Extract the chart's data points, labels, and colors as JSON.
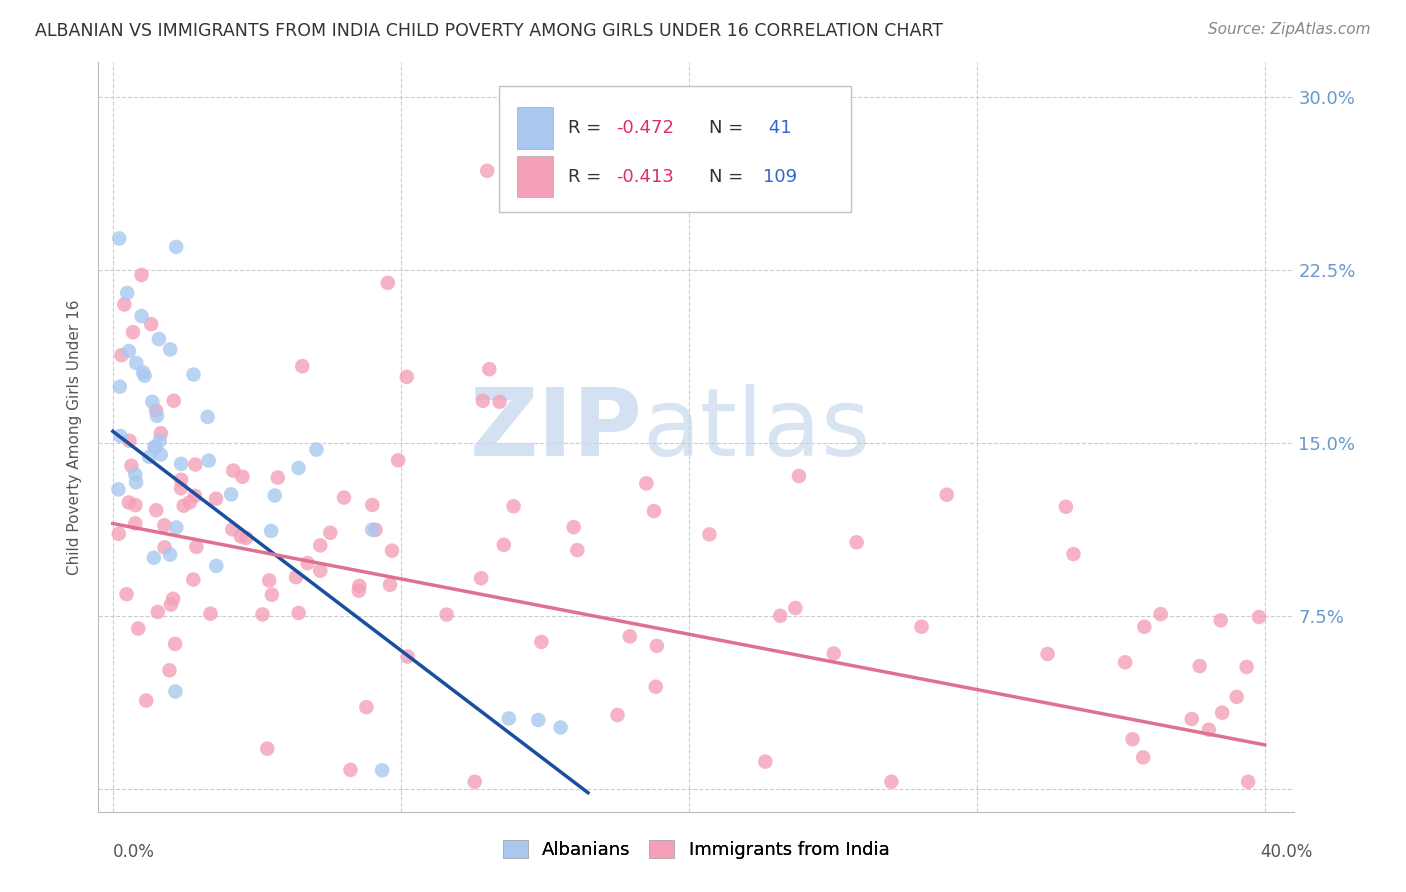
{
  "title": "ALBANIAN VS IMMIGRANTS FROM INDIA CHILD POVERTY AMONG GIRLS UNDER 16 CORRELATION CHART",
  "source": "Source: ZipAtlas.com",
  "ylabel": "Child Poverty Among Girls Under 16",
  "legend_r_albanian": "-0.472",
  "legend_n_albanian": "41",
  "legend_r_india": "-0.413",
  "legend_n_india": "109",
  "albanian_color": "#a8c8f0",
  "india_color": "#f4a0b8",
  "albanian_line_color": "#1a4fa0",
  "india_line_color": "#e07090",
  "watermark_zip": "ZIP",
  "watermark_atlas": "atlas",
  "background_color": "#ffffff",
  "grid_color": "#c8c8c8",
  "right_axis_label_color": "#6699cc",
  "title_color": "#333333",
  "source_color": "#888888",
  "legend_text_color": "#333333",
  "legend_r_color": "#e03060",
  "legend_n_color": "#3366cc",
  "ylabel_color": "#555555",
  "xtick_color": "#555555",
  "seed": 17
}
